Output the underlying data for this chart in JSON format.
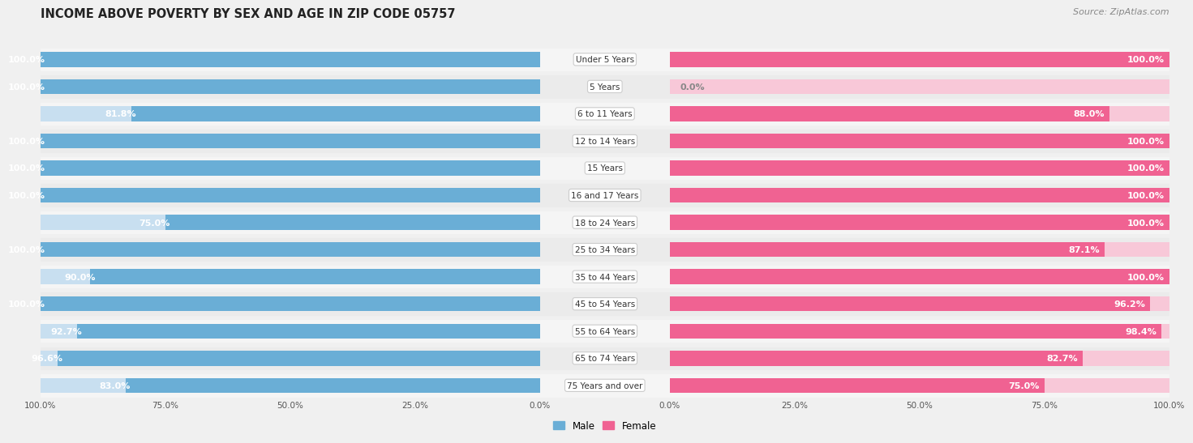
{
  "title": "INCOME ABOVE POVERTY BY SEX AND AGE IN ZIP CODE 05757",
  "source": "Source: ZipAtlas.com",
  "categories": [
    "Under 5 Years",
    "5 Years",
    "6 to 11 Years",
    "12 to 14 Years",
    "15 Years",
    "16 and 17 Years",
    "18 to 24 Years",
    "25 to 34 Years",
    "35 to 44 Years",
    "45 to 54 Years",
    "55 to 64 Years",
    "65 to 74 Years",
    "75 Years and over"
  ],
  "male": [
    100.0,
    100.0,
    81.8,
    100.0,
    100.0,
    100.0,
    75.0,
    100.0,
    90.0,
    100.0,
    92.7,
    96.6,
    83.0
  ],
  "female": [
    100.0,
    0.0,
    88.0,
    100.0,
    100.0,
    100.0,
    100.0,
    87.1,
    100.0,
    96.2,
    98.4,
    82.7,
    75.0
  ],
  "male_color": "#6aaed6",
  "male_color_light": "#c8dff0",
  "female_color": "#f06292",
  "female_color_light": "#f8c8d8",
  "bg_color": "#f0f0f0",
  "row_bg_odd": "#ebebeb",
  "row_bg_even": "#f5f5f5",
  "label_pill_color": "#ffffff",
  "label_pill_border": "#e0e0e0",
  "title_fontsize": 10.5,
  "label_fontsize": 8.0,
  "tick_fontsize": 7.5,
  "source_fontsize": 8,
  "cat_fontsize": 7.5
}
